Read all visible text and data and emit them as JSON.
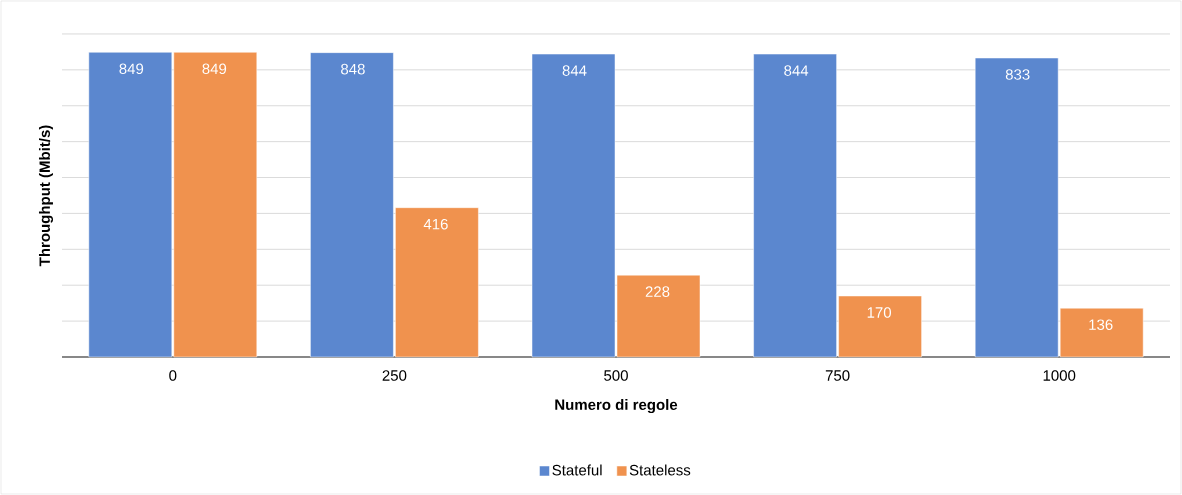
{
  "chart_data": {
    "type": "bar",
    "xlabel": "Numero di regole",
    "ylabel": "Throughput (Mbit/s)",
    "categories": [
      "0",
      "250",
      "500",
      "750",
      "1000"
    ],
    "series": [
      {
        "name": "Stateful",
        "color": "#5b87cf",
        "values": [
          849,
          848,
          844,
          844,
          833
        ]
      },
      {
        "name": "Stateless",
        "color": "#f0924e",
        "values": [
          849,
          416,
          228,
          170,
          136
        ]
      }
    ],
    "grid": "y",
    "legend": "bottom",
    "data_labels": true,
    "tick_labels": "x"
  }
}
